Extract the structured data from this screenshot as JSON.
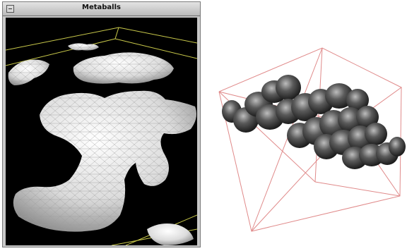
{
  "window": {
    "title": "Metaballs",
    "menu_button_icon": "window-menu-icon"
  },
  "viewport": {
    "background": "#000000",
    "bounding_box_color": "#c8c84a",
    "surface_color": "#ececec"
  },
  "right_render": {
    "bounding_box_color": "#e08a8a",
    "surface_color": "#444444"
  }
}
